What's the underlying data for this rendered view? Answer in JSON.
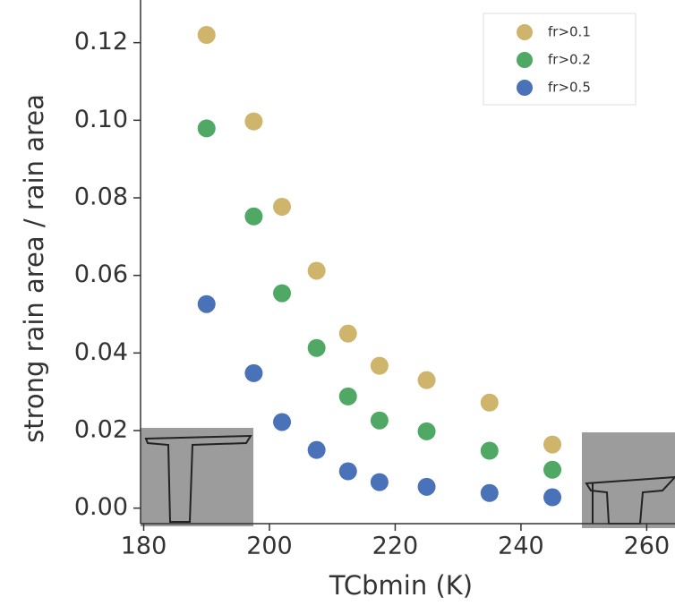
{
  "chart_data": {
    "type": "scatter",
    "xlabel": "TCbmin (K)",
    "ylabel": "strong rain area / rain area",
    "xlim": [
      179.5,
      264.5
    ],
    "ylim": [
      -0.004,
      0.131
    ],
    "xticks": [
      180,
      200,
      220,
      240,
      260
    ],
    "yticks": [
      {
        "value": 0,
        "label": "0.00"
      },
      {
        "value": 0.02,
        "label": "0.02"
      },
      {
        "value": 0.04,
        "label": "0.04"
      },
      {
        "value": 0.06,
        "label": "0.06"
      },
      {
        "value": 0.08,
        "label": "0.08"
      },
      {
        "value": 0.1,
        "label": "0.10"
      },
      {
        "value": 0.12,
        "label": "0.12"
      }
    ],
    "legend": "upper right",
    "series": [
      {
        "name": "fr>0.1",
        "color": "#cfb46c",
        "x": [
          190,
          197.5,
          202,
          207.5,
          212.5,
          217.5,
          225,
          235,
          245
        ],
        "values": [
          0.122,
          0.0997,
          0.0777,
          0.0612,
          0.045,
          0.0367,
          0.033,
          0.0272,
          0.0164
        ]
      },
      {
        "name": "fr>0.2",
        "color": "#4fa965",
        "x": [
          190,
          197.5,
          202,
          207.5,
          212.5,
          217.5,
          225,
          235,
          245
        ],
        "values": [
          0.0979,
          0.0752,
          0.0554,
          0.0413,
          0.0288,
          0.0226,
          0.0198,
          0.0148,
          0.0099
        ]
      },
      {
        "name": "fr>0.5",
        "color": "#4a72b8",
        "x": [
          190,
          197.5,
          202,
          207.5,
          212.5,
          217.5,
          225,
          235,
          245
        ],
        "values": [
          0.0526,
          0.0348,
          0.0222,
          0.015,
          0.0095,
          0.0067,
          0.0055,
          0.0039,
          0.0028
        ]
      }
    ]
  }
}
